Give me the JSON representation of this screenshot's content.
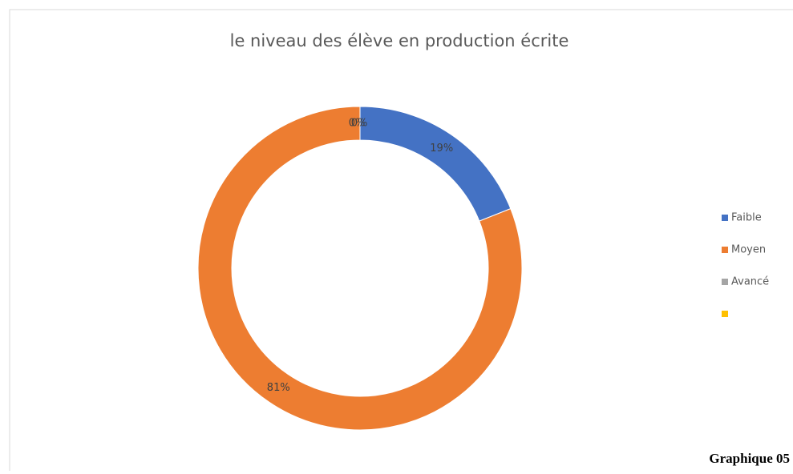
{
  "chart_data": {
    "type": "donut",
    "title": "le niveau des élève en production écrite",
    "categories": [
      "Faible",
      "Moyen",
      "Avancé",
      null
    ],
    "values": [
      19,
      81,
      0,
      0
    ],
    "value_labels": [
      "19%",
      "81%",
      "0%",
      "0%"
    ],
    "colors": [
      "#4472c4",
      "#ed7d31",
      "#a5a5a5",
      "#ffc000"
    ],
    "legend": "right"
  },
  "caption": "Graphique 05"
}
